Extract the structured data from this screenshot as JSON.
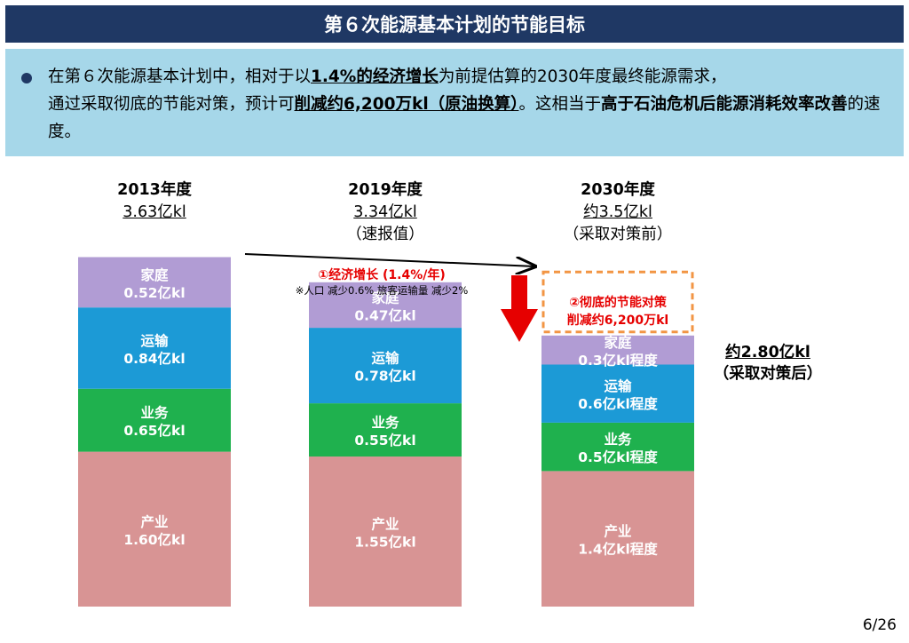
{
  "header": {
    "title": "第６次能源基本计划的节能目标"
  },
  "summary": {
    "p1": "在第６次能源基本计划中，相对于以",
    "b1": "1.4%的经济增长",
    "p2": "为前提估算的2030年度最终能源需求，",
    "p3": "通过采取彻底的节能对策，预计可",
    "b2": "削减约6,200万kl（原油换算）",
    "p4": "。这相当于",
    "b3": "高于石油危机后能源消耗效率改善",
    "p5": "的速度。"
  },
  "columns": [
    {
      "year": "2013年度",
      "total": "3.63亿kl",
      "note": ""
    },
    {
      "year": "2019年度",
      "total": "3.34亿kl",
      "note": "（速报值）"
    },
    {
      "year": "2030年度",
      "total": "约3.5亿kl",
      "note": "（采取对策前）"
    }
  ],
  "annotations": {
    "growth": "①经济增长 (1.4%/年)",
    "growth_note": "※人口  减少0.6%  旅客运输量  减少2%",
    "saving_line1": "②彻底的节能对策",
    "saving_line2": "削减约6,200万kl",
    "after_value": "约2.80亿kl",
    "after_note": "（采取对策后）"
  },
  "colors": {
    "家庭": "#b19cd4",
    "运输": "#1c9ad6",
    "业务": "#1fb14e",
    "产业": "#d89494",
    "title_bar": "#1f3864",
    "summary_bg": "#a6d7e9",
    "accent_red": "#e60000",
    "dashed_orange": "#f29544"
  },
  "chart_data": {
    "type": "bar",
    "stacked": true,
    "categories": [
      "2013年度",
      "2019年度",
      "2030年度"
    ],
    "unit": "亿kl",
    "series": [
      {
        "name": "产业",
        "values": [
          1.6,
          1.55,
          1.4
        ],
        "labels": [
          "1.60亿kl",
          "1.55亿kl",
          "1.4亿kl程度"
        ]
      },
      {
        "name": "业务",
        "values": [
          0.65,
          0.55,
          0.5
        ],
        "labels": [
          "0.65亿kl",
          "0.55亿kl",
          "0.5亿kl程度"
        ]
      },
      {
        "name": "运输",
        "values": [
          0.84,
          0.78,
          0.6
        ],
        "labels": [
          "0.84亿kl",
          "0.78亿kl",
          "0.6亿kl程度"
        ]
      },
      {
        "name": "家庭",
        "values": [
          0.52,
          0.47,
          0.3
        ],
        "labels": [
          "0.52亿kl",
          "0.47亿kl",
          "0.3亿kl程度"
        ]
      }
    ],
    "reduction": {
      "category": "2030年度",
      "value": 0.62
    }
  },
  "page": {
    "number": "6/26"
  }
}
